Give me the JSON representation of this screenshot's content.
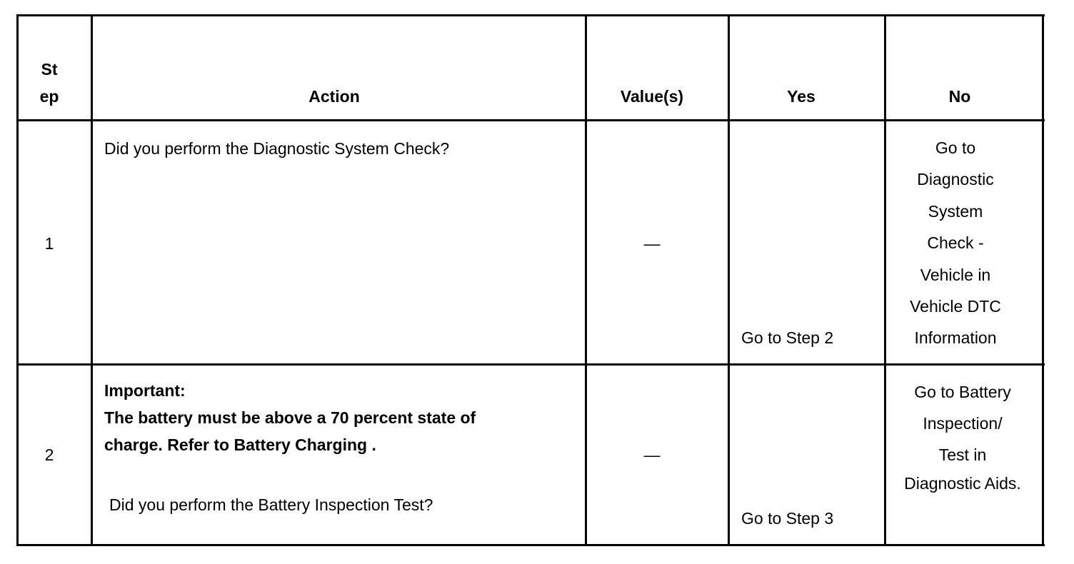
{
  "table": {
    "headers": {
      "step": [
        "St",
        "ep"
      ],
      "action": "Action",
      "values": "Value(s)",
      "yes": "Yes",
      "no": "No"
    },
    "rows": [
      {
        "step": "1",
        "action": [
          "Did you perform the Diagnostic System Check?"
        ],
        "value": "—",
        "yes": "Go to Step 2",
        "no": [
          "Go to",
          "Diagnostic",
          "System",
          "Check -",
          "Vehicle in",
          "Vehicle DTC",
          "Information"
        ]
      },
      {
        "step": "2",
        "important_label": "Important:",
        "important_text": [
          "The battery must be above a 70 percent state of",
          "charge. Refer to Battery Charging ."
        ],
        "action": [
          "Did you perform the Battery Inspection Test?"
        ],
        "value": "—",
        "yes": "Go to Step 3",
        "no": [
          "Go to Battery",
          "Inspection/",
          "Test in",
          "Diagnostic Aids."
        ]
      }
    ]
  }
}
